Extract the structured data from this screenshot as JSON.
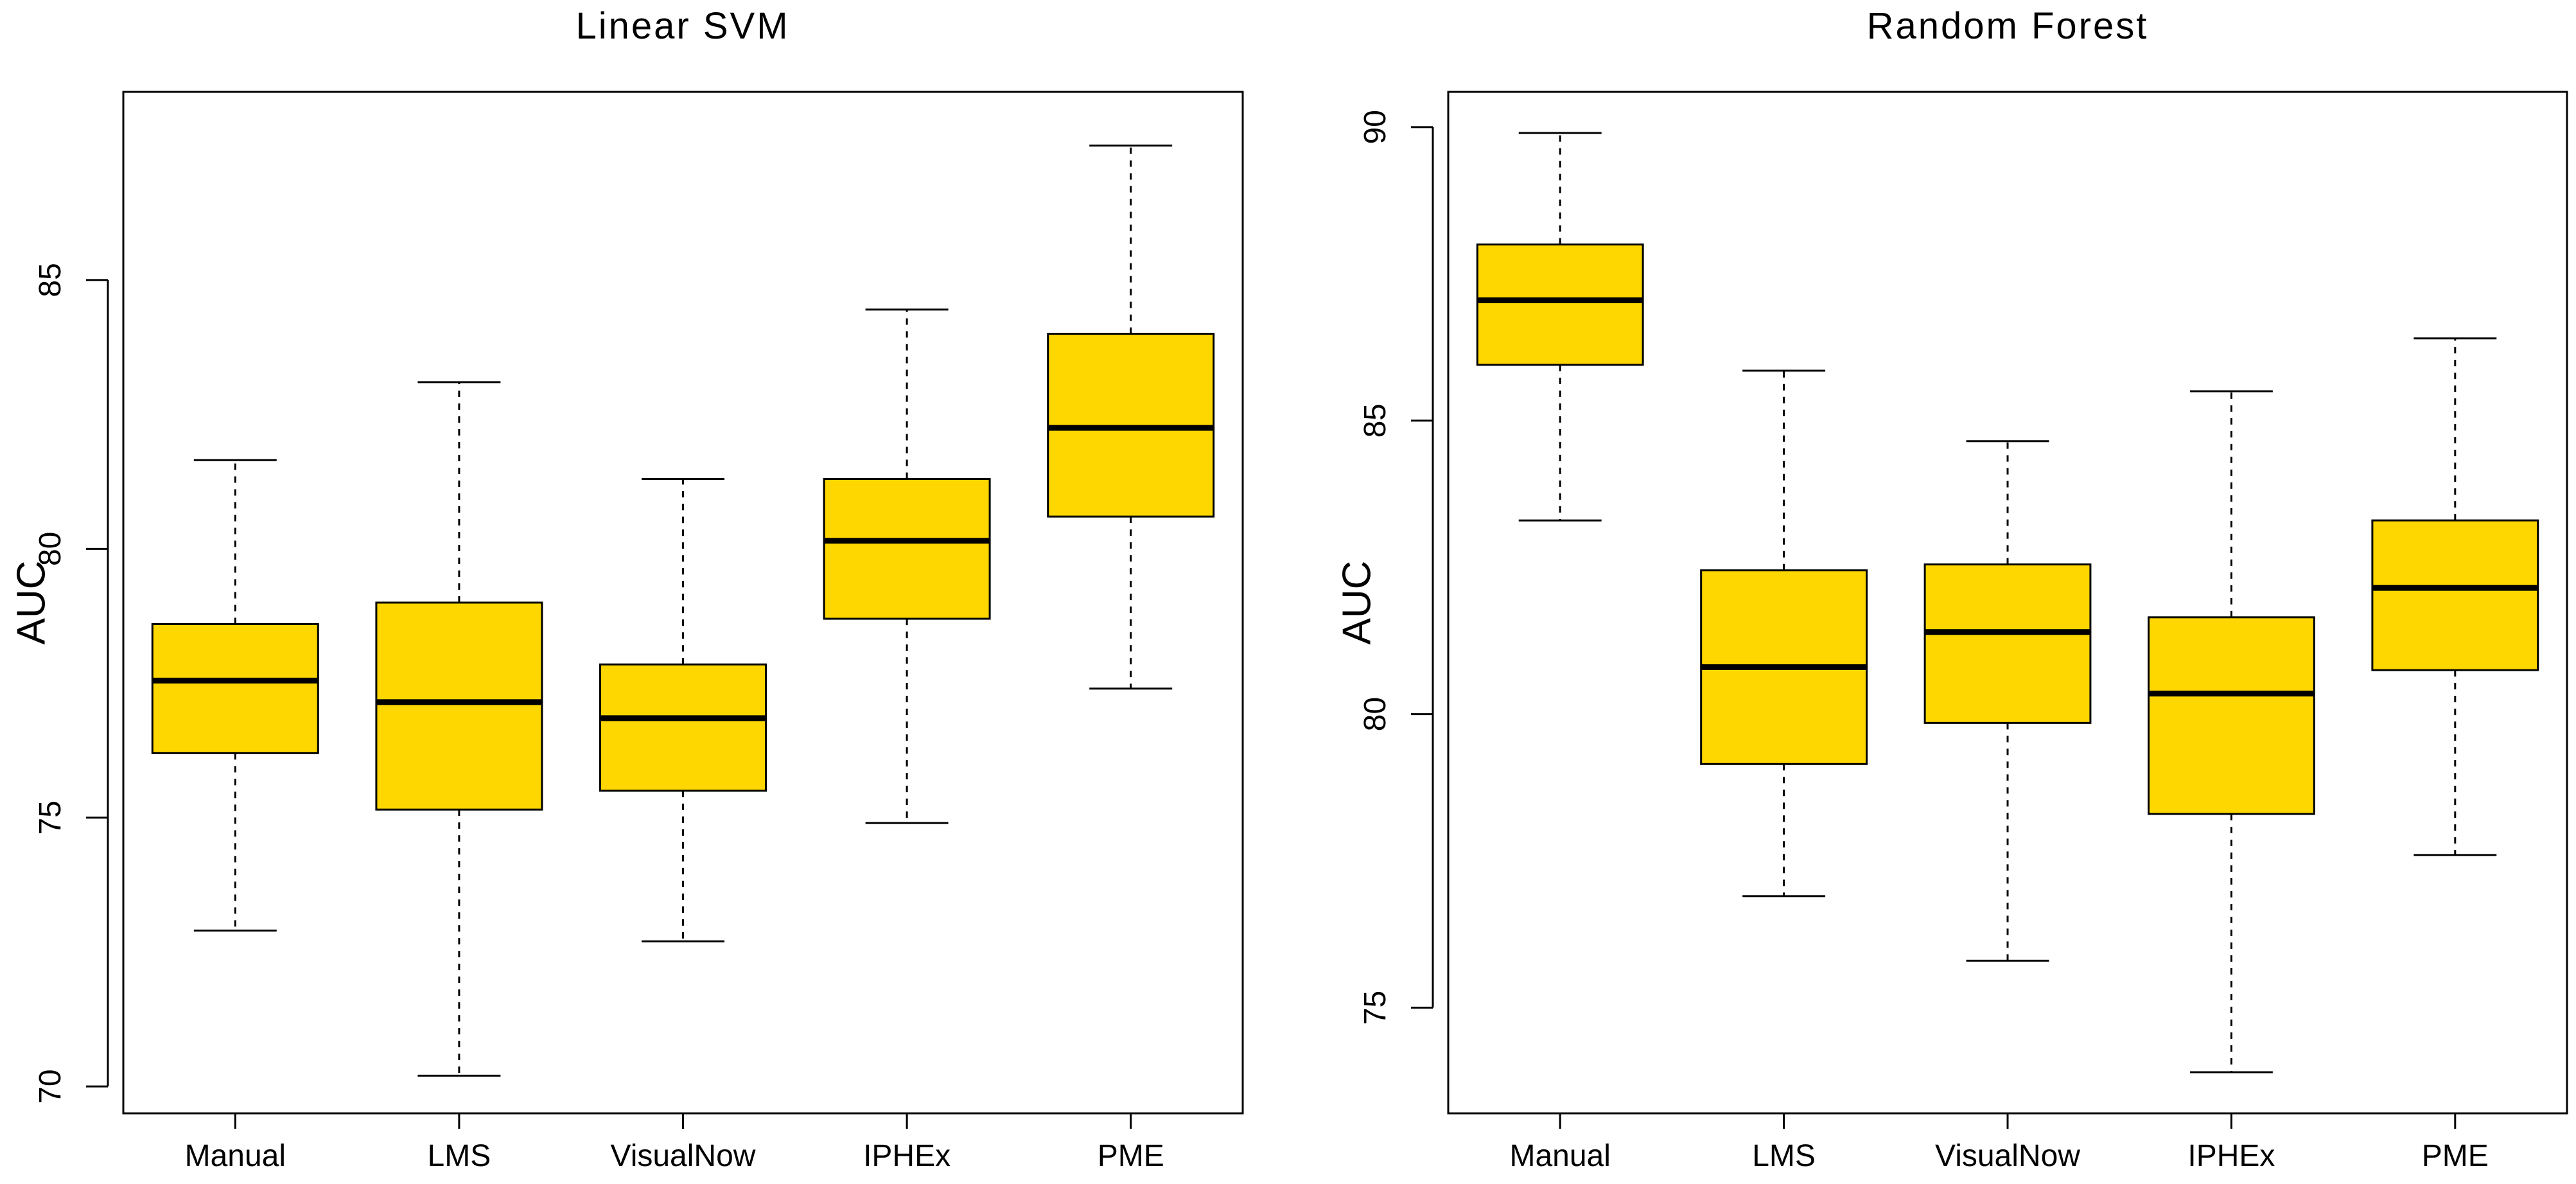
{
  "chart_data": [
    {
      "type": "boxplot",
      "title": "Linear SVM",
      "xlabel": "",
      "ylabel": "AUC",
      "ylim": [
        69.5,
        88.5
      ],
      "yticks": [
        70,
        75,
        80,
        85
      ],
      "categories": [
        "Manual",
        "LMS",
        "VisualNow",
        "IPHEx",
        "PME"
      ],
      "box_color": "#FFD700",
      "boxes": [
        {
          "label": "Manual",
          "whisker_low": 72.9,
          "q1": 76.2,
          "median": 77.55,
          "q3": 78.6,
          "whisker_high": 81.65
        },
        {
          "label": "LMS",
          "whisker_low": 70.2,
          "q1": 75.15,
          "median": 77.15,
          "q3": 79.0,
          "whisker_high": 83.1
        },
        {
          "label": "VisualNow",
          "whisker_low": 72.7,
          "q1": 75.5,
          "median": 76.85,
          "q3": 77.85,
          "whisker_high": 81.3
        },
        {
          "label": "IPHEx",
          "whisker_low": 74.9,
          "q1": 78.7,
          "median": 80.15,
          "q3": 81.3,
          "whisker_high": 84.45
        },
        {
          "label": "PME",
          "whisker_low": 77.4,
          "q1": 80.6,
          "median": 82.25,
          "q3": 84.0,
          "whisker_high": 87.5
        }
      ]
    },
    {
      "type": "boxplot",
      "title": "Random Forest",
      "xlabel": "",
      "ylabel": "AUC",
      "ylim": [
        73.2,
        90.6
      ],
      "yticks": [
        75,
        80,
        85,
        90
      ],
      "categories": [
        "Manual",
        "LMS",
        "VisualNow",
        "IPHEx",
        "PME"
      ],
      "box_color": "#FFD700",
      "boxes": [
        {
          "label": "Manual",
          "whisker_low": 83.3,
          "q1": 85.95,
          "median": 87.05,
          "q3": 88.0,
          "whisker_high": 89.9
        },
        {
          "label": "LMS",
          "whisker_low": 76.9,
          "q1": 79.15,
          "median": 80.8,
          "q3": 82.45,
          "whisker_high": 85.85
        },
        {
          "label": "VisualNow",
          "whisker_low": 75.8,
          "q1": 79.85,
          "median": 81.4,
          "q3": 82.55,
          "whisker_high": 84.65
        },
        {
          "label": "IPHEx",
          "whisker_low": 73.9,
          "q1": 78.3,
          "median": 80.35,
          "q3": 81.65,
          "whisker_high": 85.5
        },
        {
          "label": "PME",
          "whisker_low": 77.6,
          "q1": 80.75,
          "median": 82.15,
          "q3": 83.3,
          "whisker_high": 86.4
        }
      ]
    }
  ]
}
